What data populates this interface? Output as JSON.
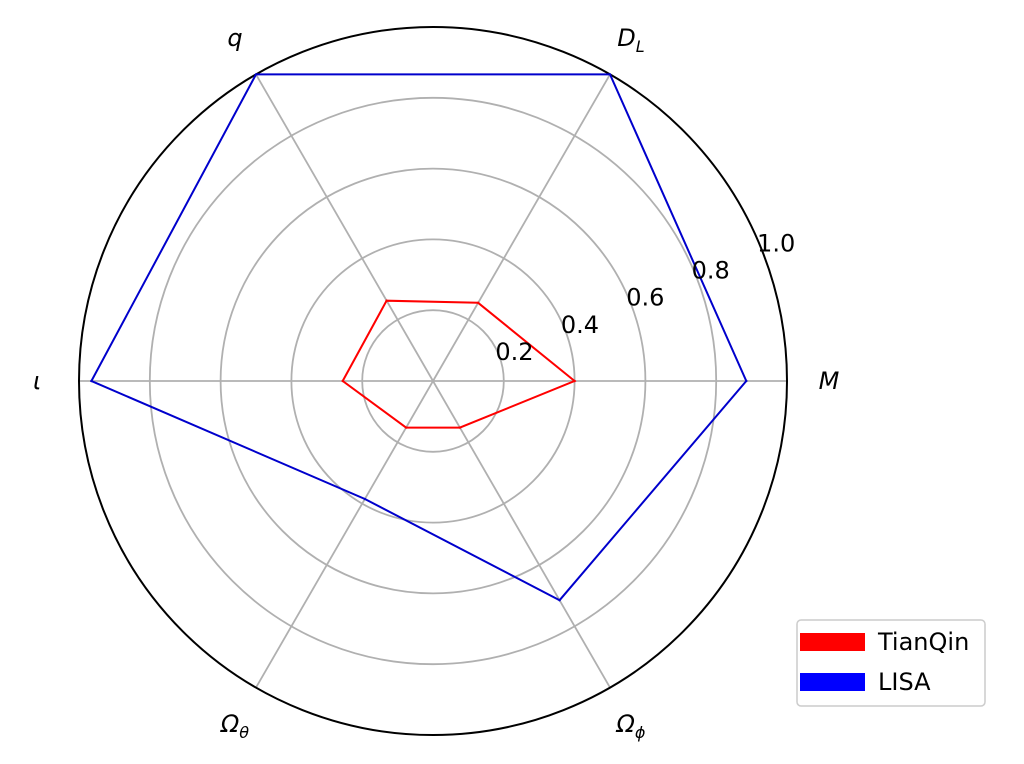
{
  "chart_data": {
    "type": "radar",
    "axes": [
      {
        "id": "M",
        "main": "M",
        "sub": ""
      },
      {
        "id": "D_L",
        "main": "D",
        "sub": "L"
      },
      {
        "id": "q",
        "main": "q",
        "sub": ""
      },
      {
        "id": "iota",
        "main": "ι",
        "sub": ""
      },
      {
        "id": "Omega_theta",
        "main": "Ω",
        "sub": "θ"
      },
      {
        "id": "Omega_phi",
        "main": "Ω",
        "sub": "ϕ"
      }
    ],
    "radial_ticks": [
      "0.2",
      "0.4",
      "0.6",
      "0.8",
      "1.0"
    ],
    "radial_tick_values": [
      0.2,
      0.4,
      0.6,
      0.8,
      1.0
    ],
    "rlim": [
      0,
      1.0
    ],
    "grid": true,
    "legend_position": "lower-right",
    "series": [
      {
        "name": "TianQin",
        "color": "#ff0000",
        "values": [
          0.4,
          0.255,
          0.262,
          0.255,
          0.152,
          0.152
        ]
      },
      {
        "name": "LISA",
        "color": "#0000cc",
        "values": [
          0.885,
          1.0,
          1.0,
          0.965,
          0.385,
          0.715
        ]
      }
    ]
  }
}
